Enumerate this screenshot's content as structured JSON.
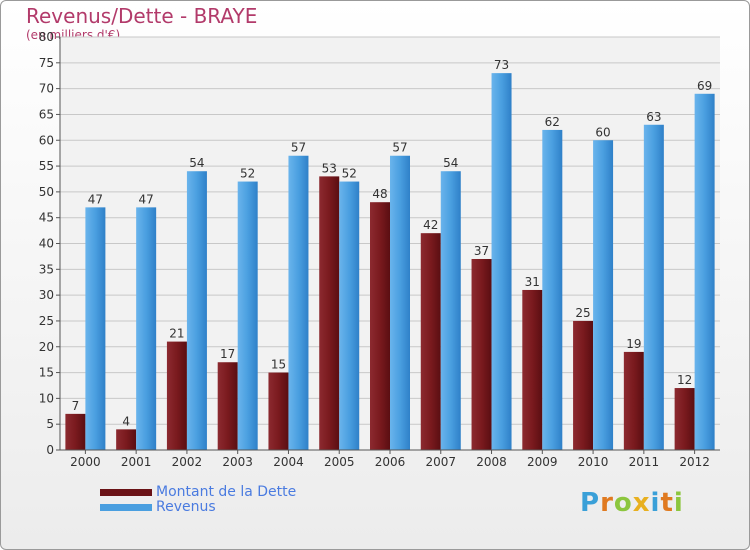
{
  "chart_data": {
    "type": "bar",
    "title": "Revenus/Dette - BRAYE",
    "subtitle": "(en milliers d'€)",
    "categories": [
      "2000",
      "2001",
      "2002",
      "2003",
      "2004",
      "2005",
      "2006",
      "2007",
      "2008",
      "2009",
      "2010",
      "2011",
      "2012"
    ],
    "series": [
      {
        "name": "Montant de la Dette",
        "color": "#7a1a1e",
        "values": [
          7,
          4,
          21,
          17,
          15,
          53,
          48,
          42,
          37,
          31,
          25,
          19,
          12
        ]
      },
      {
        "name": "Revenus",
        "color": "#4a9fe0",
        "values": [
          47,
          47,
          54,
          52,
          57,
          52,
          57,
          54,
          73,
          62,
          60,
          63,
          69
        ]
      }
    ],
    "ylim": [
      0,
      80
    ],
    "yticks": [
      0,
      5,
      10,
      15,
      20,
      25,
      30,
      35,
      40,
      45,
      50,
      55,
      60,
      65,
      70,
      75,
      80
    ],
    "grid": true,
    "legend": "bottom-left"
  },
  "logo": {
    "letters": [
      "P",
      "r",
      "o",
      "x",
      "i",
      "t",
      "i"
    ],
    "colors": [
      "#3aa0d8",
      "#e07a20",
      "#8cc63e",
      "#e8b020",
      "#3aa0d8",
      "#e07a20",
      "#8cc63e"
    ]
  }
}
